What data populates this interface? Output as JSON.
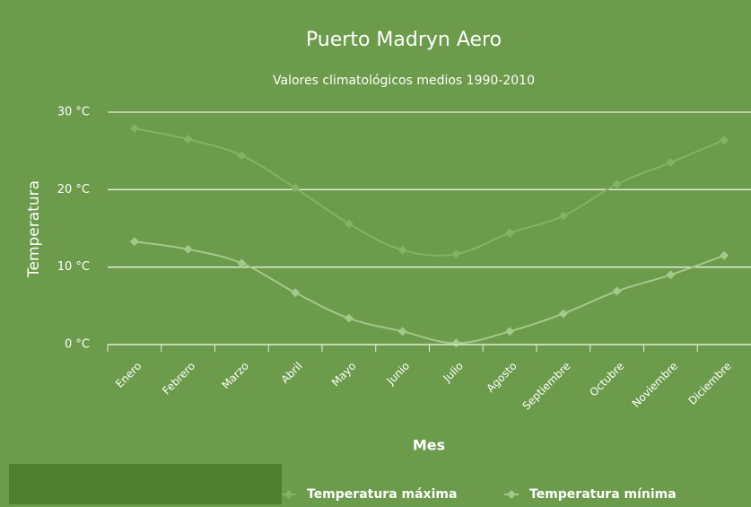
{
  "chart_data": {
    "type": "line",
    "title": "Puerto Madryn Aero",
    "subtitle": "Valores climatológicos medios 1990-2010",
    "y_axis_label": "Temperatura",
    "x_axis_label": "Mes",
    "categories": [
      "Enero",
      "Febrero",
      "Marzo",
      "Abril",
      "Mayo",
      "Junio",
      "Julio",
      "Agosto",
      "Septiembre",
      "Octubre",
      "Noviembre",
      "Diciembre"
    ],
    "series": [
      {
        "name": "Temperatura máxima",
        "color": "#83b264",
        "values": [
          27.9,
          26.5,
          24.4,
          20.2,
          15.6,
          12.2,
          11.7,
          14.4,
          16.6,
          20.7,
          23.5,
          26.4
        ]
      },
      {
        "name": "Temperatura mínima",
        "color": "#a3c98a",
        "values": [
          13.3,
          12.3,
          10.5,
          6.7,
          3.4,
          1.7,
          0.2,
          1.7,
          4.0,
          6.9,
          9.0,
          11.5
        ]
      }
    ],
    "ylim": [
      0,
      30
    ],
    "yticks": [
      {
        "value": 0,
        "label": "0 °C"
      },
      {
        "value": 10,
        "label": "10 °C"
      },
      {
        "value": 20,
        "label": "20 °C"
      },
      {
        "value": 30,
        "label": "30 °C"
      }
    ],
    "grid": true,
    "legend": "bottom"
  }
}
